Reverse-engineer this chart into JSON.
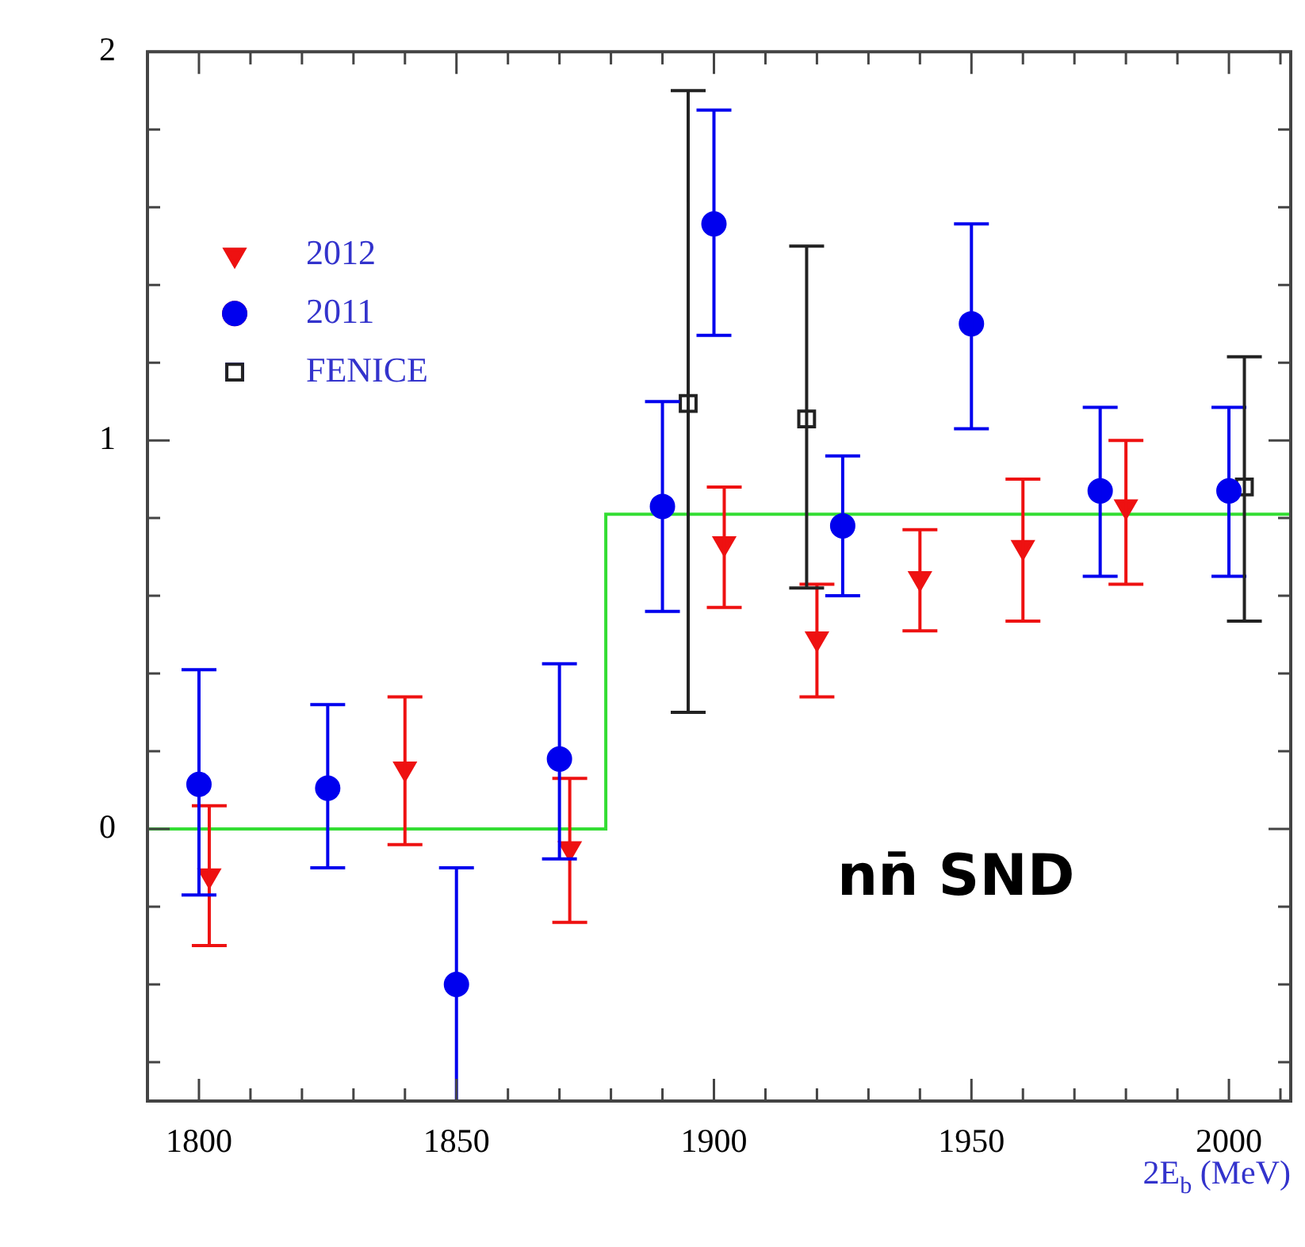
{
  "chart_data": {
    "type": "scatter",
    "xlabel": "2E$_{b}$ (MeV)",
    "xlim": [
      1790,
      2012
    ],
    "xticks": [
      1800,
      {
        "value": 1810,
        "label": null
      },
      {
        "value": 1820,
        "label": null
      },
      {
        "value": 1830,
        "label": null
      },
      {
        "value": 1840,
        "label": null
      },
      1850,
      {
        "value": 1860,
        "label": null
      },
      {
        "value": 1870,
        "label": null
      },
      {
        "value": 1880,
        "label": null
      },
      {
        "value": 1890,
        "label": null
      },
      1900,
      {
        "value": 1910,
        "label": null
      },
      {
        "value": 1920,
        "label": null
      },
      {
        "value": 1930,
        "label": null
      },
      {
        "value": 1940,
        "label": null
      },
      1950,
      {
        "value": 1960,
        "label": null
      },
      {
        "value": 1970,
        "label": null
      },
      {
        "value": 1980,
        "label": null
      },
      {
        "value": 1990,
        "label": null
      },
      2000,
      {
        "value": 2010,
        "label": null
      }
    ],
    "ylim": [
      -0.7,
      2
    ],
    "yticks": [
      {
        "value": -0.6,
        "label": null
      },
      {
        "value": -0.4,
        "label": null
      },
      {
        "value": -0.2,
        "label": null
      },
      0,
      {
        "value": 0.2,
        "label": null
      },
      {
        "value": 0.4,
        "label": null
      },
      {
        "value": 0.6,
        "label": null
      },
      {
        "value": 0.8,
        "label": null
      },
      1,
      {
        "value": 1.2,
        "label": null
      },
      {
        "value": 1.4,
        "label": null
      },
      {
        "value": 1.6,
        "label": null
      },
      {
        "value": 1.8,
        "label": null
      },
      2
    ],
    "grid": false,
    "legend": "top left",
    "annotations": [
      "nn̄ SND"
    ],
    "series": [
      {
        "name": "2012",
        "color": "#ee1111",
        "marker": "triangle",
        "x": [
          1802,
          1840,
          1872,
          1902,
          1920,
          1940,
          1960,
          1980
        ],
        "values": [
          -0.12,
          0.155,
          -0.05,
          0.735,
          0.49,
          0.645,
          0.725,
          0.83
        ],
        "errors": [
          [
            -0.3,
            0.06
          ],
          [
            -0.04,
            0.34
          ],
          [
            -0.24,
            0.13
          ],
          [
            0.57,
            0.88
          ],
          [
            0.34,
            0.63
          ],
          [
            0.51,
            0.77
          ],
          [
            0.535,
            0.9
          ],
          [
            0.63,
            1.0
          ]
        ]
      },
      {
        "name": "2011",
        "color": "#0000ee",
        "marker": "circle",
        "x": [
          1800,
          1825,
          1850,
          1870,
          1890,
          1900,
          1925,
          1950,
          1975,
          2000
        ],
        "values": [
          0.115,
          0.105,
          -0.4,
          0.18,
          0.83,
          1.557,
          0.78,
          1.3,
          0.87,
          0.87
        ],
        "errors": [
          [
            -0.17,
            0.41
          ],
          [
            -0.1,
            0.32
          ],
          [
            -0.7,
            -0.1
          ],
          [
            -0.077,
            0.425
          ],
          [
            0.56,
            1.1
          ],
          [
            1.27,
            1.85
          ],
          [
            0.6,
            0.96
          ],
          [
            1.03,
            1.557
          ],
          [
            0.65,
            1.085
          ],
          [
            0.65,
            1.085
          ]
        ]
      },
      {
        "name": "FENICE",
        "color": "#222222",
        "marker": "square",
        "x": [
          1895,
          1918,
          2003
        ],
        "values": [
          1.095,
          1.055,
          0.88
        ],
        "errors": [
          [
            0.3,
            1.9
          ],
          [
            0.62,
            1.5
          ],
          [
            0.535,
            1.215
          ]
        ]
      },
      {
        "type": "step",
        "color": "#33dd33",
        "x": [
          1790,
          1879,
          2012
        ],
        "values": [
          0,
          0.81,
          0.81
        ]
      }
    ]
  }
}
